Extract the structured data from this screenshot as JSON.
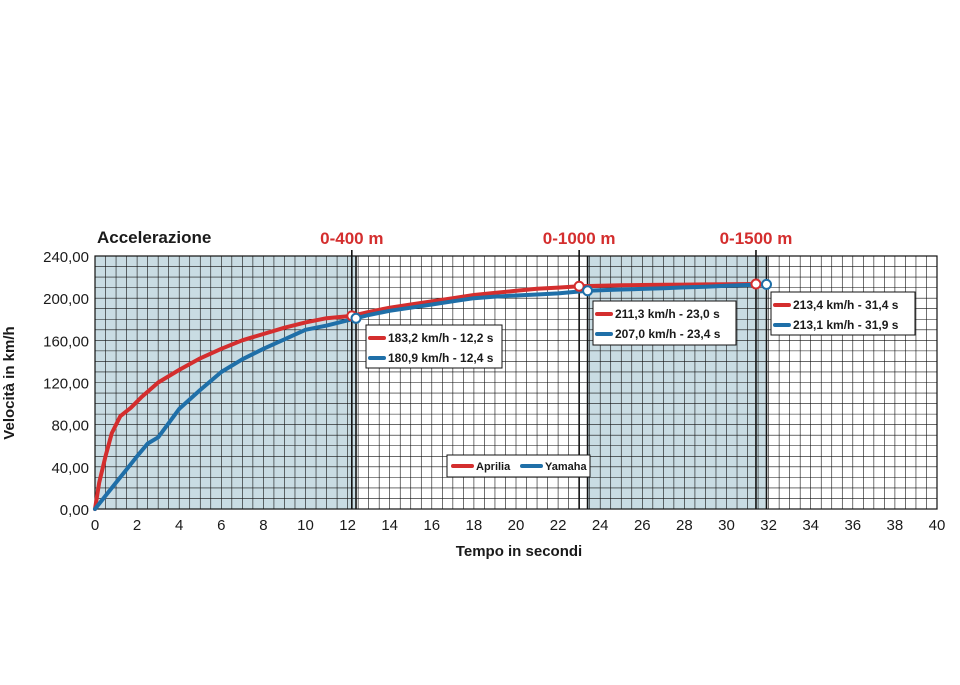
{
  "chart_data": {
    "type": "line",
    "title": "Accelerazione",
    "xlabel": "Tempo in secondi",
    "ylabel": "Velocità in km/h",
    "xlim": [
      0,
      40
    ],
    "ylim": [
      0,
      240
    ],
    "grid": true,
    "x_ticks": [
      "0",
      "2",
      "4",
      "6",
      "8",
      "10",
      "12",
      "14",
      "16",
      "18",
      "20",
      "22",
      "24",
      "26",
      "28",
      "30",
      "32",
      "34",
      "36",
      "38",
      "40"
    ],
    "y_ticks": [
      "0,00",
      "40,00",
      "80,00",
      "120,00",
      "160,00",
      "200,00",
      "240,00"
    ],
    "markers": [
      {
        "label": "0-400 m",
        "time": 12.2
      },
      {
        "label": "0-1000 m",
        "time": 23.0
      },
      {
        "label": "0-1500 m",
        "time": 31.4
      }
    ],
    "shaded_ranges": [
      [
        0,
        12.4
      ],
      [
        23.4,
        31.9
      ]
    ],
    "series": [
      {
        "name": "Aprilia",
        "color": "#d42e2e",
        "points": [
          [
            0,
            0
          ],
          [
            0.2,
            25
          ],
          [
            0.5,
            50
          ],
          [
            0.8,
            72
          ],
          [
            1.2,
            88
          ],
          [
            1.7,
            96
          ],
          [
            2.2,
            106
          ],
          [
            3,
            120
          ],
          [
            4,
            132
          ],
          [
            5,
            143
          ],
          [
            6,
            152
          ],
          [
            7,
            160
          ],
          [
            8,
            166
          ],
          [
            9,
            172
          ],
          [
            10,
            177
          ],
          [
            11,
            181
          ],
          [
            12.2,
            183.2
          ],
          [
            13,
            187
          ],
          [
            14,
            191
          ],
          [
            15,
            194
          ],
          [
            16,
            197
          ],
          [
            17,
            200
          ],
          [
            18,
            203
          ],
          [
            19,
            205
          ],
          [
            20,
            207
          ],
          [
            21,
            209
          ],
          [
            22,
            210
          ],
          [
            23,
            211.3
          ],
          [
            24,
            211.8
          ],
          [
            25,
            212.2
          ],
          [
            26,
            212.5
          ],
          [
            27,
            212.7
          ],
          [
            28,
            212.9
          ],
          [
            29,
            213.1
          ],
          [
            30,
            213.2
          ],
          [
            31.4,
            213.4
          ]
        ]
      },
      {
        "name": "Yamaha",
        "color": "#1f6fa8",
        "points": [
          [
            0,
            0
          ],
          [
            1,
            25
          ],
          [
            2,
            50
          ],
          [
            2.5,
            62
          ],
          [
            3,
            68
          ],
          [
            4,
            95
          ],
          [
            5,
            113
          ],
          [
            6,
            130
          ],
          [
            7,
            142
          ],
          [
            8,
            152
          ],
          [
            9,
            161
          ],
          [
            10,
            170
          ],
          [
            11,
            174
          ],
          [
            12.4,
            180.9
          ],
          [
            13,
            184
          ],
          [
            14,
            188
          ],
          [
            15,
            191
          ],
          [
            16,
            194
          ],
          [
            17,
            197
          ],
          [
            18,
            200
          ],
          [
            19,
            201.5
          ],
          [
            20,
            202.5
          ],
          [
            21,
            203.5
          ],
          [
            22,
            204.5
          ],
          [
            23.4,
            207.0
          ],
          [
            24,
            207.5
          ],
          [
            25,
            208.2
          ],
          [
            26,
            208.8
          ],
          [
            27,
            209.5
          ],
          [
            28,
            210.2
          ],
          [
            29,
            210.9
          ],
          [
            30,
            211.7
          ],
          [
            31,
            212.5
          ],
          [
            31.9,
            213.1
          ]
        ]
      }
    ],
    "annotations": [
      {
        "time": 12.2,
        "aprilia": "183,2 km/h - 12,2 s",
        "yamaha": "180,9 km/h - 12,4 s"
      },
      {
        "time": 23.0,
        "aprilia": "211,3 km/h - 23,0 s",
        "yamaha": "207,0 km/h - 23,4 s"
      },
      {
        "time": 31.4,
        "aprilia": "213,4 km/h - 31,4 s",
        "yamaha": "213,1 km/h - 31,9 s"
      }
    ],
    "legend": {
      "position": "bottom-center",
      "items": [
        "Aprilia",
        "Yamaha"
      ]
    }
  }
}
